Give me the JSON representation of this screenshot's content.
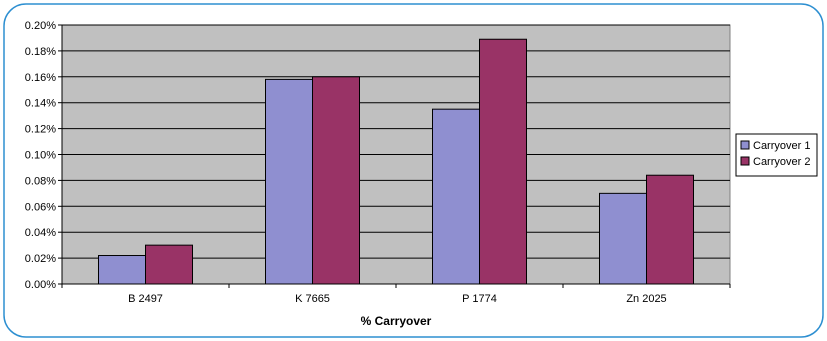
{
  "chart_data": {
    "type": "bar",
    "categories": [
      "B 2497",
      "K 7665",
      "P 1774",
      "Zn 2025"
    ],
    "series": [
      {
        "name": "Carryover 1",
        "values": [
          0.022,
          0.158,
          0.135,
          0.07
        ]
      },
      {
        "name": "Carryover 2",
        "values": [
          0.03,
          0.16,
          0.189,
          0.084
        ]
      }
    ],
    "xlabel": "% Carryover",
    "ylabel": "",
    "ylim": [
      0,
      0.2
    ],
    "yticks": [
      "0.00%",
      "0.02%",
      "0.04%",
      "0.06%",
      "0.08%",
      "0.10%",
      "0.12%",
      "0.14%",
      "0.16%",
      "0.18%",
      "0.20%"
    ],
    "grid": true,
    "legend_position": "right",
    "colors": {
      "series": [
        "#8f8fd0",
        "#993366"
      ],
      "plot_background": "#c0c0c0",
      "frame_border": "#2d8fd1"
    }
  }
}
